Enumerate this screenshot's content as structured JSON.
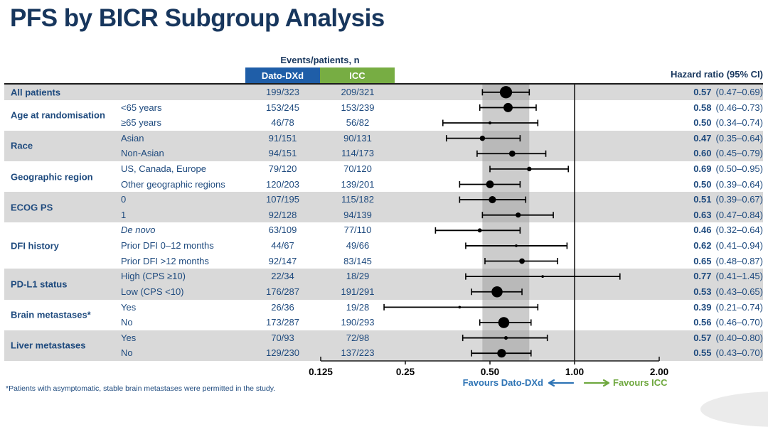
{
  "title": "PFS by BICR Subgroup Analysis",
  "header": {
    "events_patients": "Events/patients, n",
    "arm1": "Dato-DXd",
    "arm2": "ICC",
    "hazard_ratio": "Hazard ratio (95% CI)"
  },
  "favours": {
    "left": "Favours Dato-DXd",
    "right": "Favours ICC"
  },
  "footnote": "*Patients with asymptomatic, stable brain metastases were permitted in the study.",
  "colors": {
    "title_navy": "#17365D",
    "table_text_navy": "#1E4A7E",
    "arm1_blue": "#1F5EA8",
    "arm2_green": "#77AD43",
    "stripe_gray": "#D9D9D9",
    "band_gray": "#BFBFBF",
    "favours_blue": "#2E74B5",
    "favours_green": "#6FA83F",
    "marker_black": "#000000"
  },
  "chart_data": {
    "type": "scatter",
    "subtype": "forest-plot",
    "title": "PFS by BICR Subgroup Analysis",
    "x_scale": "log2",
    "x_ticks": [
      0.125,
      0.25,
      0.5,
      1.0,
      2.0
    ],
    "x_tick_labels": [
      "0.125",
      "0.25",
      "0.50",
      "1.00",
      "2.00"
    ],
    "xlim": [
      0.125,
      2.0
    ],
    "reference_line": 1.0,
    "shaded_band": {
      "low": 0.47,
      "high": 0.69
    },
    "legend_note": "marker size proportional to subgroup size; band = overall HR 95% CI",
    "groups": [
      {
        "label": "All patients",
        "rows": [
          {
            "sublabel": "",
            "dato": "199/323",
            "icc": "209/321",
            "hr": 0.57,
            "lo": 0.47,
            "hi": 0.69,
            "hr_text": "0.57",
            "ci_text": "(0.47–0.69)"
          }
        ]
      },
      {
        "label": "Age at randomisation",
        "rows": [
          {
            "sublabel": "<65 years",
            "dato": "153/245",
            "icc": "153/239",
            "hr": 0.58,
            "lo": 0.46,
            "hi": 0.73,
            "hr_text": "0.58",
            "ci_text": "(0.46–0.73)"
          },
          {
            "sublabel": "≥65 years",
            "dato": "46/78",
            "icc": "56/82",
            "hr": 0.5,
            "lo": 0.34,
            "hi": 0.74,
            "hr_text": "0.50",
            "ci_text": "(0.34–0.74)"
          }
        ]
      },
      {
        "label": "Race",
        "rows": [
          {
            "sublabel": "Asian",
            "dato": "91/151",
            "icc": "90/131",
            "hr": 0.47,
            "lo": 0.35,
            "hi": 0.64,
            "hr_text": "0.47",
            "ci_text": "(0.35–0.64)"
          },
          {
            "sublabel": "Non-Asian",
            "dato": "94/151",
            "icc": "114/173",
            "hr": 0.6,
            "lo": 0.45,
            "hi": 0.79,
            "hr_text": "0.60",
            "ci_text": "(0.45–0.79)"
          }
        ]
      },
      {
        "label": "Geographic region",
        "rows": [
          {
            "sublabel": "US, Canada, Europe",
            "dato": "79/120",
            "icc": "70/120",
            "hr": 0.69,
            "lo": 0.5,
            "hi": 0.95,
            "hr_text": "0.69",
            "ci_text": "(0.50–0.95)"
          },
          {
            "sublabel": "Other geographic regions",
            "dato": "120/203",
            "icc": "139/201",
            "hr": 0.5,
            "lo": 0.39,
            "hi": 0.64,
            "hr_text": "0.50",
            "ci_text": "(0.39–0.64)"
          }
        ]
      },
      {
        "label": "ECOG PS",
        "rows": [
          {
            "sublabel": "0",
            "dato": "107/195",
            "icc": "115/182",
            "hr": 0.51,
            "lo": 0.39,
            "hi": 0.67,
            "hr_text": "0.51",
            "ci_text": "(0.39–0.67)"
          },
          {
            "sublabel": "1",
            "dato": "92/128",
            "icc": "94/139",
            "hr": 0.63,
            "lo": 0.47,
            "hi": 0.84,
            "hr_text": "0.63",
            "ci_text": "(0.47–0.84)"
          }
        ]
      },
      {
        "label": "DFI history",
        "rows": [
          {
            "sublabel": "De novo",
            "italic": true,
            "dato": "63/109",
            "icc": "77/110",
            "hr": 0.46,
            "lo": 0.32,
            "hi": 0.64,
            "hr_text": "0.46",
            "ci_text": "(0.32–0.64)"
          },
          {
            "sublabel": "Prior DFI 0–12 months",
            "dato": "44/67",
            "icc": "49/66",
            "hr": 0.62,
            "lo": 0.41,
            "hi": 0.94,
            "hr_text": "0.62",
            "ci_text": "(0.41–0.94)"
          },
          {
            "sublabel": "Prior DFI >12 months",
            "dato": "92/147",
            "icc": "83/145",
            "hr": 0.65,
            "lo": 0.48,
            "hi": 0.87,
            "hr_text": "0.65",
            "ci_text": "(0.48–0.87)"
          }
        ]
      },
      {
        "label": "PD-L1 status",
        "rows": [
          {
            "sublabel": "High (CPS ≥10)",
            "dato": "22/34",
            "icc": "18/29",
            "hr": 0.77,
            "lo": 0.41,
            "hi": 1.45,
            "hr_text": "0.77",
            "ci_text": "(0.41–1.45)"
          },
          {
            "sublabel": "Low (CPS <10)",
            "dato": "176/287",
            "icc": "191/291",
            "hr": 0.53,
            "lo": 0.43,
            "hi": 0.65,
            "hr_text": "0.53",
            "ci_text": "(0.43–0.65)"
          }
        ]
      },
      {
        "label": "Brain metastases*",
        "rows": [
          {
            "sublabel": "Yes",
            "dato": "26/36",
            "icc": "19/28",
            "hr": 0.39,
            "lo": 0.21,
            "hi": 0.74,
            "hr_text": "0.39",
            "ci_text": "(0.21–0.74)"
          },
          {
            "sublabel": "No",
            "dato": "173/287",
            "icc": "190/293",
            "hr": 0.56,
            "lo": 0.46,
            "hi": 0.7,
            "hr_text": "0.56",
            "ci_text": "(0.46–0.70)"
          }
        ]
      },
      {
        "label": "Liver metastases",
        "rows": [
          {
            "sublabel": "Yes",
            "dato": "70/93",
            "icc": "72/98",
            "hr": 0.57,
            "lo": 0.4,
            "hi": 0.8,
            "hr_text": "0.57",
            "ci_text": "(0.40–0.80)"
          },
          {
            "sublabel": "No",
            "dato": "129/230",
            "icc": "137/223",
            "hr": 0.55,
            "lo": 0.43,
            "hi": 0.7,
            "hr_text": "0.55",
            "ci_text": "(0.43–0.70)"
          }
        ]
      }
    ]
  }
}
